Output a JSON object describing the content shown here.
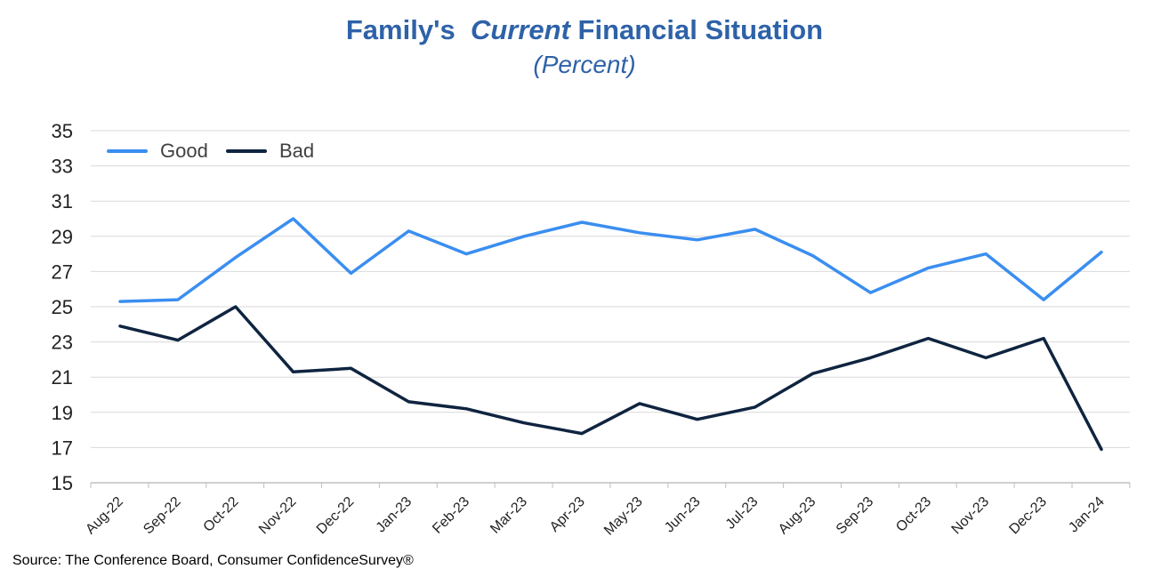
{
  "title": {
    "part1": "Family's",
    "part2": "Current",
    "part3": "Financial Situation"
  },
  "subtitle": "(Percent)",
  "source": "Source: The Conference Board, Consumer ConfidenceSurvey®",
  "chart_data": {
    "type": "line",
    "title": "Family's Current Financial Situation",
    "subtitle": "(Percent)",
    "categories": [
      "Aug-22",
      "Sep-22",
      "Oct-22",
      "Nov-22",
      "Dec-22",
      "Jan-23",
      "Feb-23",
      "Mar-23",
      "Apr-23",
      "May-23",
      "Jun-23",
      "Jul-23",
      "Aug-23",
      "Sep-23",
      "Oct-23",
      "Nov-23",
      "Dec-23",
      "Jan-24"
    ],
    "series": [
      {
        "name": "Good",
        "color": "#3a8ef0",
        "values": [
          25.3,
          25.4,
          27.8,
          30.0,
          26.9,
          29.3,
          28.0,
          29.0,
          29.8,
          29.2,
          28.8,
          29.4,
          27.9,
          25.8,
          27.2,
          28.0,
          25.4,
          28.1
        ]
      },
      {
        "name": "Bad",
        "color": "#0f2440",
        "values": [
          23.9,
          23.1,
          25.0,
          21.3,
          21.5,
          19.6,
          19.2,
          18.4,
          17.8,
          19.5,
          18.6,
          19.3,
          21.2,
          22.1,
          23.2,
          22.1,
          23.2,
          16.9
        ]
      }
    ],
    "ylim": [
      15,
      35
    ],
    "yticks": [
      "15",
      "17",
      "19",
      "21",
      "23",
      "25",
      "27",
      "29",
      "31",
      "33",
      "35"
    ],
    "grid": true,
    "legend": "top-left"
  }
}
